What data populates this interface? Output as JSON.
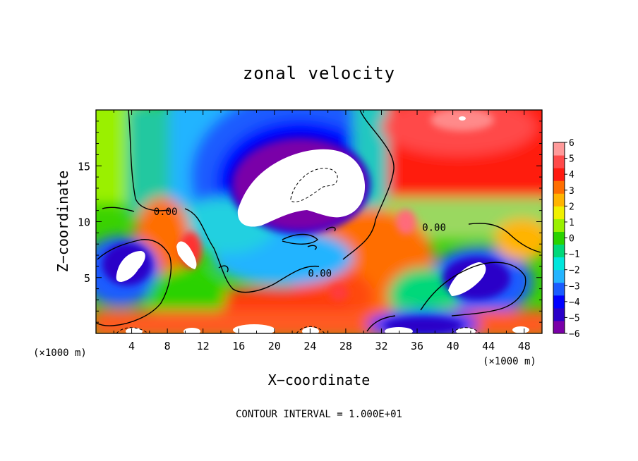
{
  "chart_data": {
    "type": "heatmap",
    "title": "zonal velocity",
    "xlabel": "X−coordinate",
    "ylabel": "Z−coordinate",
    "x_unit_left": "(×1000 m)",
    "x_unit_right": "(×1000 m)",
    "xlim": [
      0,
      50
    ],
    "ylim": [
      0,
      20
    ],
    "x_ticks": [
      4,
      8,
      12,
      16,
      20,
      24,
      28,
      32,
      36,
      40,
      44,
      48
    ],
    "y_ticks": [
      5,
      10,
      15
    ],
    "colorbar": {
      "min": -6,
      "max": 6,
      "ticks": [
        "6",
        "5",
        "4",
        "3",
        "2",
        "1",
        "0",
        "−1",
        "−2",
        "−3",
        "−4",
        "−5",
        "−6"
      ],
      "colors": [
        "#7a00a8",
        "#2a00c8",
        "#0000ff",
        "#1a5cff",
        "#24b4ff",
        "#00e6dc",
        "#00d87a",
        "#2ad200",
        "#9af000",
        "#f0f000",
        "#ffb400",
        "#ff6e00",
        "#ff1a10",
        "#ff4a4a",
        "#ff9a9a"
      ]
    },
    "contour_labels": [
      {
        "text": "0.00",
        "x": 7.8,
        "y": 10.9
      },
      {
        "text": "0.00",
        "x": 37.9,
        "y": 9.5
      },
      {
        "text": "0.00",
        "x": 25.1,
        "y": 5.4
      }
    ],
    "contour_interval_note": "CONTOUR INTERVAL = 1.000E+01"
  }
}
